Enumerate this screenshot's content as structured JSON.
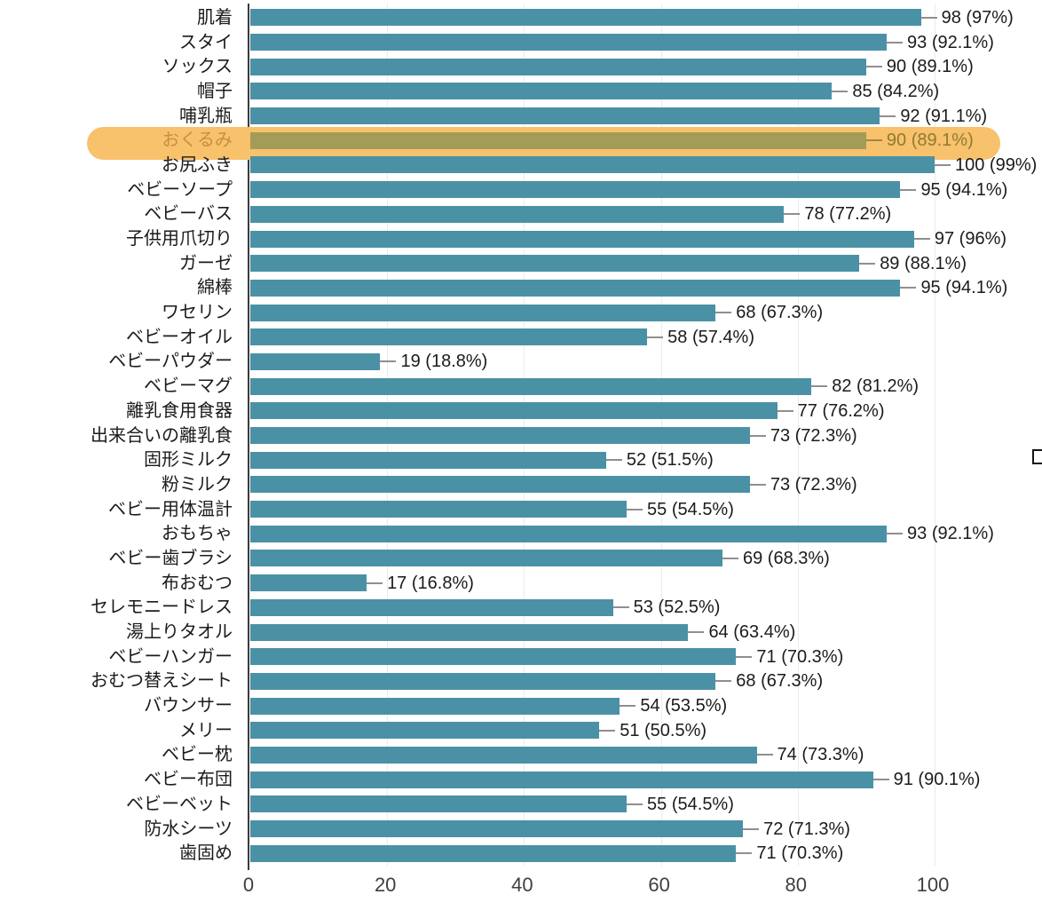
{
  "chart_data": {
    "type": "bar",
    "orientation": "horizontal",
    "title": "",
    "xlabel": "",
    "ylabel": "",
    "xlim": [
      0,
      100
    ],
    "x_ticks": [
      0,
      20,
      40,
      60,
      80,
      100
    ],
    "grid": "vertical-light",
    "bar_color": "#4b91a5",
    "highlight": {
      "index": 5,
      "band_color": "#f8c16c",
      "bar_color": "#a39c59",
      "label_color": "#c5913f",
      "value_color": "#8d7b33"
    },
    "categories": [
      "肌着",
      "スタイ",
      "ソックス",
      "帽子",
      "哺乳瓶",
      "おくるみ",
      "お尻ふき",
      "ベビーソープ",
      "ベビーバス",
      "子供用爪切り",
      "ガーゼ",
      "綿棒",
      "ワセリン",
      "ベビーオイル",
      "ベビーパウダー",
      "ベビーマグ",
      "離乳食用食器",
      "出来合いの離乳食",
      "固形ミルク",
      "粉ミルク",
      "ベビー用体温計",
      "おもちゃ",
      "ベビー歯ブラシ",
      "布おむつ",
      "セレモニードレス",
      "湯上りタオル",
      "ベビーハンガー",
      "おむつ替えシート",
      "バウンサー",
      "メリー",
      "ベビー枕",
      "ベビー布団",
      "ベビーベット",
      "防水シーツ",
      "歯固め"
    ],
    "values": [
      98,
      93,
      90,
      85,
      92,
      90,
      100,
      95,
      78,
      97,
      89,
      95,
      68,
      58,
      19,
      82,
      77,
      73,
      52,
      73,
      55,
      93,
      69,
      17,
      53,
      64,
      71,
      68,
      54,
      51,
      74,
      91,
      55,
      72,
      71
    ],
    "percentages": [
      97,
      92.1,
      89.1,
      84.2,
      91.1,
      89.1,
      99,
      94.1,
      77.2,
      96,
      88.1,
      94.1,
      67.3,
      57.4,
      18.8,
      81.2,
      76.2,
      72.3,
      51.5,
      72.3,
      54.5,
      92.1,
      68.3,
      16.8,
      52.5,
      63.4,
      70.3,
      67.3,
      53.5,
      50.5,
      73.3,
      90.1,
      54.5,
      71.3,
      70.3
    ],
    "value_labels": [
      "98 (97%)",
      "93 (92.1%)",
      "90 (89.1%)",
      "85 (84.2%)",
      "92 (91.1%)",
      "90 (89.1%)",
      "100 (99%)",
      "95 (94.1%)",
      "78 (77.2%)",
      "97 (96%)",
      "89 (88.1%)",
      "95 (94.1%)",
      "68 (67.3%)",
      "58 (57.4%)",
      "19 (18.8%)",
      "82 (81.2%)",
      "77 (76.2%)",
      "73 (72.3%)",
      "52 (51.5%)",
      "73 (72.3%)",
      "55 (54.5%)",
      "93 (92.1%)",
      "69 (68.3%)",
      "17 (16.8%)",
      "53 (52.5%)",
      "64 (63.4%)",
      "71 (70.3%)",
      "68 (67.3%)",
      "54 (53.5%)",
      "51 (50.5%)",
      "74 (73.3%)",
      "91 (90.1%)",
      "55 (54.5%)",
      "72 (71.3%)",
      "71 (70.3%)"
    ]
  }
}
